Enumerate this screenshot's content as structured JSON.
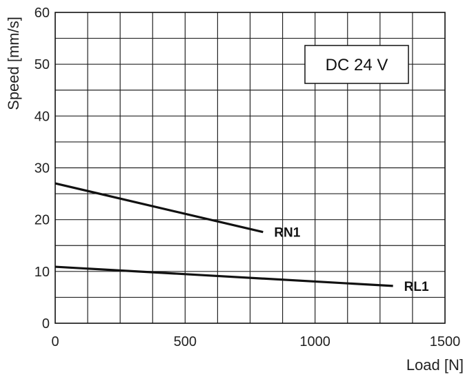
{
  "chart_data": {
    "type": "line",
    "xlabel": "Load [N]",
    "ylabel": "Speed [mm/s]",
    "xlim": [
      0,
      1500
    ],
    "ylim": [
      0,
      60
    ],
    "xticks": [
      0,
      500,
      1000,
      1500
    ],
    "yticks": [
      0,
      10,
      20,
      30,
      40,
      50,
      60
    ],
    "x_minor_step": 125,
    "y_minor_step": 5,
    "grid": true,
    "annotation": "DC 24 V",
    "series": [
      {
        "name": "RN1",
        "x": [
          0,
          800
        ],
        "y": [
          27,
          17.6
        ]
      },
      {
        "name": "RL1",
        "x": [
          0,
          1300
        ],
        "y": [
          10.9,
          7.2
        ]
      }
    ],
    "colors": {
      "line": "#111111",
      "grid": "#222222"
    }
  }
}
